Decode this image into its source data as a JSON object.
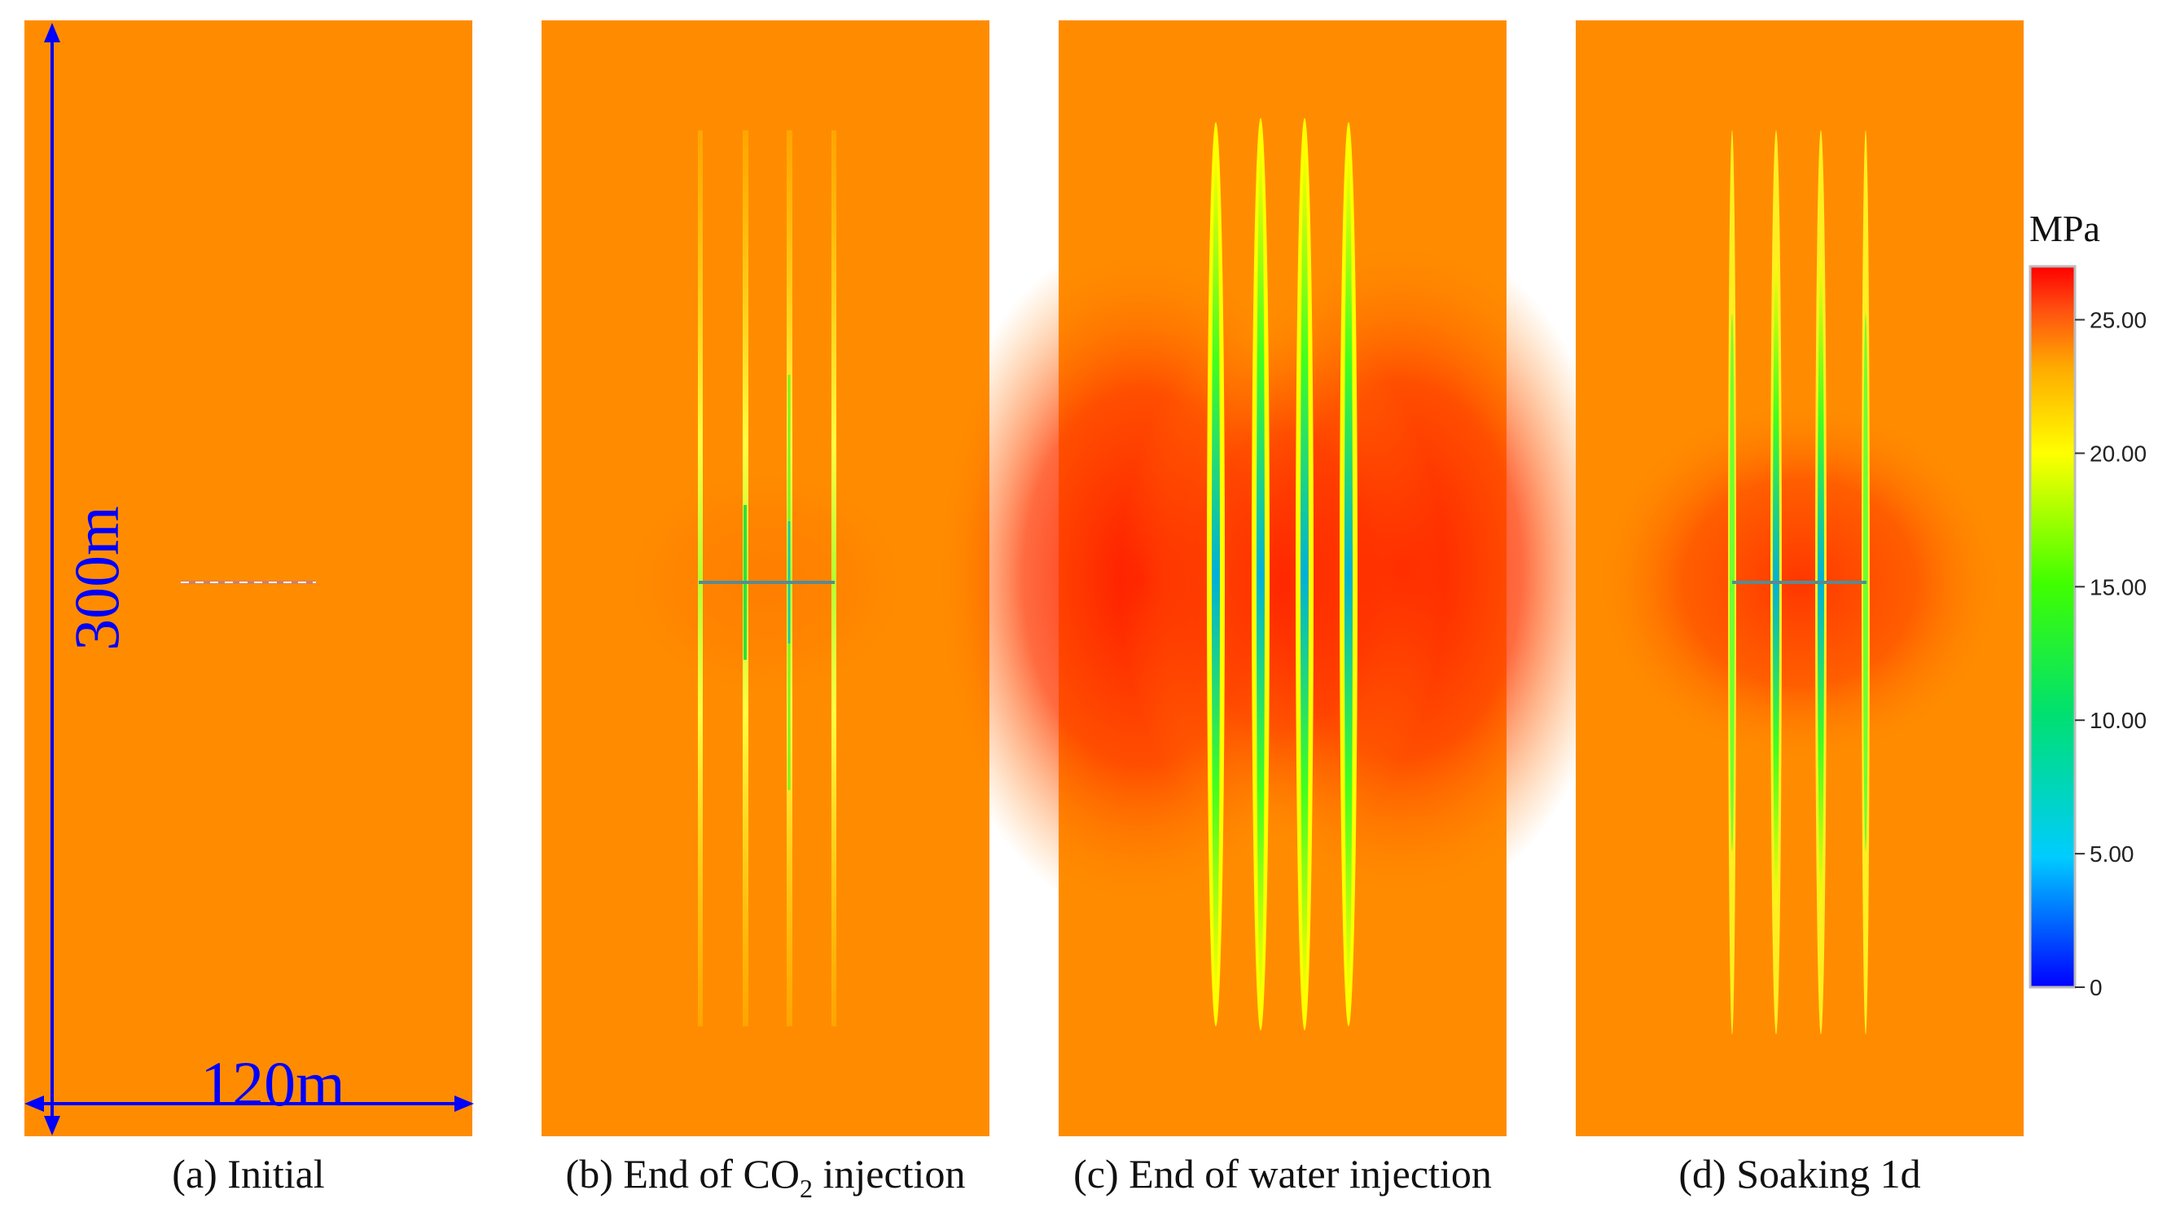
{
  "panels": [
    {
      "id": "a",
      "caption": "(a) Initial",
      "frac_positions": [
        0.34,
        0.51
      ],
      "frac_profile": "dashed-well",
      "depletion_level": 0.0,
      "halo_intensity": 0.0
    },
    {
      "id": "b",
      "caption_prefix": "(b) End of CO",
      "caption_sub": "2",
      "caption_suffix": " injection",
      "frac_positions": [
        0.35,
        0.45,
        0.55,
        0.65
      ],
      "frac_profile": "thin",
      "depletion_level": 0.35,
      "halo_intensity": 0.1
    },
    {
      "id": "c",
      "caption": "(c) End of water injection",
      "frac_positions": [
        0.35,
        0.45,
        0.55,
        0.65
      ],
      "frac_profile": "wide",
      "depletion_level": 0.85,
      "halo_intensity": 1.0
    },
    {
      "id": "d",
      "caption": "(d) Soaking 1d",
      "frac_positions": [
        0.35,
        0.45,
        0.55,
        0.65
      ],
      "frac_profile": "medium",
      "depletion_level": 0.6,
      "halo_intensity": 0.5
    }
  ],
  "dimensions": {
    "height_label": "300m",
    "width_label": "120m",
    "color": "#0000ff"
  },
  "colorbar": {
    "unit": "MPa",
    "min": 0,
    "max": 27,
    "ticks": [
      {
        "value": 25,
        "label": "25.00"
      },
      {
        "value": 20,
        "label": "20.00"
      },
      {
        "value": 15,
        "label": "15.00"
      },
      {
        "value": 10,
        "label": "10.00"
      },
      {
        "value": 5,
        "label": "5.00"
      },
      {
        "value": 0,
        "label": "0"
      }
    ],
    "colors": [
      "#0000ff",
      "#00ccff",
      "#00e070",
      "#40ff00",
      "#ffff00",
      "#ffaa00",
      "#ff5010",
      "#ff0000"
    ]
  },
  "background_pressure_color": "#ff8c00"
}
